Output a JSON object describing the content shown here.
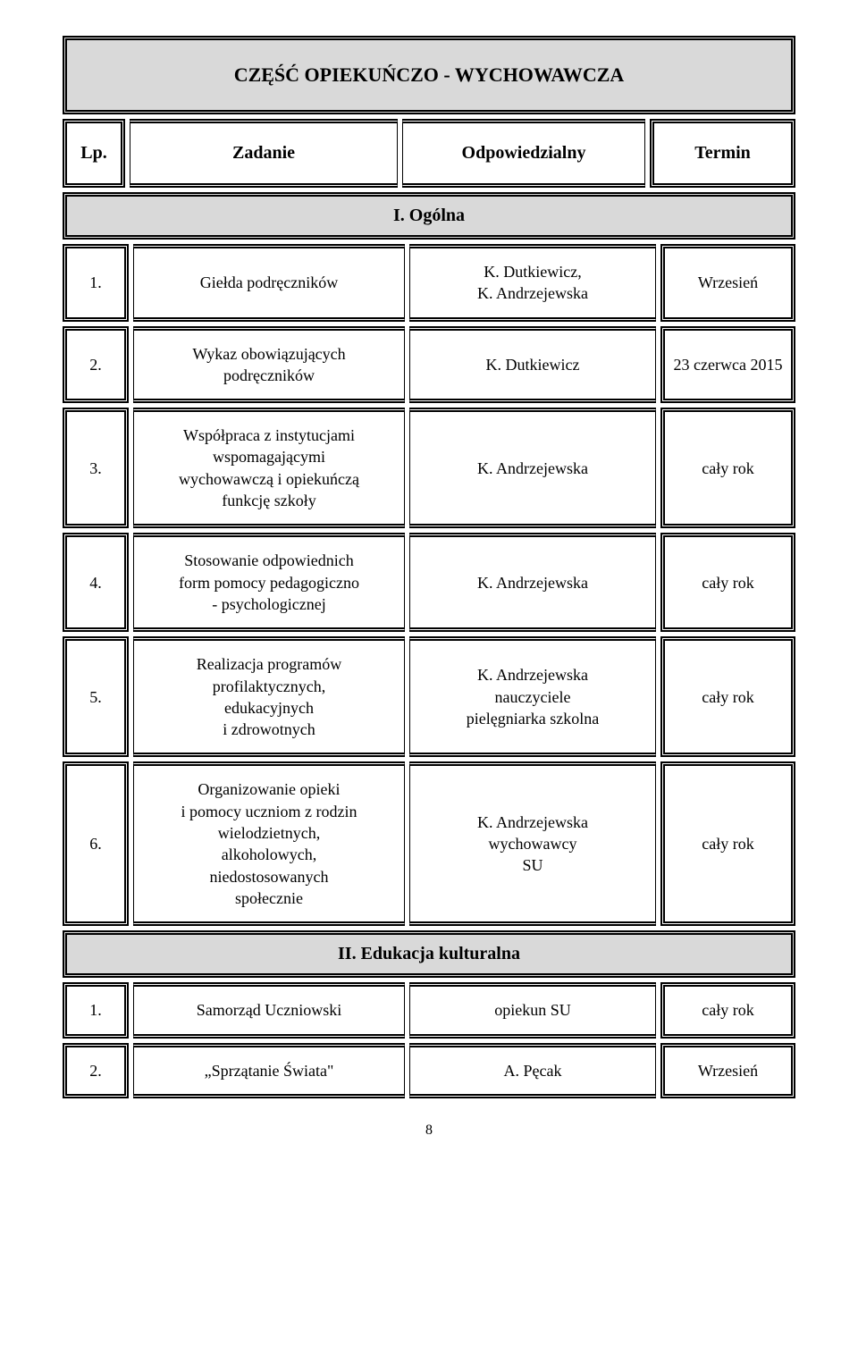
{
  "title": "CZĘŚĆ OPIEKUŃCZO - WYCHOWAWCZA",
  "columns": {
    "lp": "Lp.",
    "task": "Zadanie",
    "resp": "Odpowiedzialny",
    "term": "Termin"
  },
  "section1": "I. Ogólna",
  "rows1": [
    {
      "lp": "1.",
      "task": "Giełda podręczników",
      "resp": "K. Dutkiewicz,\nK. Andrzejewska",
      "term": "Wrzesień"
    },
    {
      "lp": "2.",
      "task": "Wykaz obowiązujących\npodręczników",
      "resp": "K. Dutkiewicz",
      "term": "23 czerwca 2015"
    },
    {
      "lp": "3.",
      "task": "Współpraca z instytucjami\nwspomagającymi\nwychowawczą i opiekuńczą\nfunkcję szkoły",
      "resp": "K. Andrzejewska",
      "term": "cały rok"
    },
    {
      "lp": "4.",
      "task": "Stosowanie odpowiednich\nform pomocy pedagogiczno\n- psychologicznej",
      "resp": "K. Andrzejewska",
      "term": "cały rok"
    },
    {
      "lp": "5.",
      "task": "Realizacja programów\nprofilaktycznych,\nedukacyjnych\ni zdrowotnych",
      "resp": "K. Andrzejewska\nnauczyciele\npielęgniarka szkolna",
      "term": "cały rok"
    },
    {
      "lp": "6.",
      "task": "Organizowanie opieki\ni pomocy uczniom z rodzin\nwielodzietnych,\nalkoholowych,\nniedostosowanych\nspołecznie",
      "resp": "K. Andrzejewska\nwychowawcy\nSU",
      "term": "cały rok"
    }
  ],
  "section2": "II. Edukacja kulturalna",
  "rows2": [
    {
      "lp": "1.",
      "task": "Samorząd Uczniowski",
      "resp": "opiekun SU",
      "term": "cały rok"
    },
    {
      "lp": "2.",
      "task": "„Sprzątanie Świata\"",
      "resp": "A. Pęcak",
      "term": "Wrzesień"
    }
  ],
  "page_number": "8",
  "colors": {
    "header_bg": "#d9d9d9",
    "page_bg": "#ffffff",
    "text": "#000000",
    "border": "#000000"
  },
  "fonts": {
    "family": "Times New Roman",
    "title_size_pt": 17,
    "header_size_pt": 15,
    "body_size_pt": 13
  }
}
